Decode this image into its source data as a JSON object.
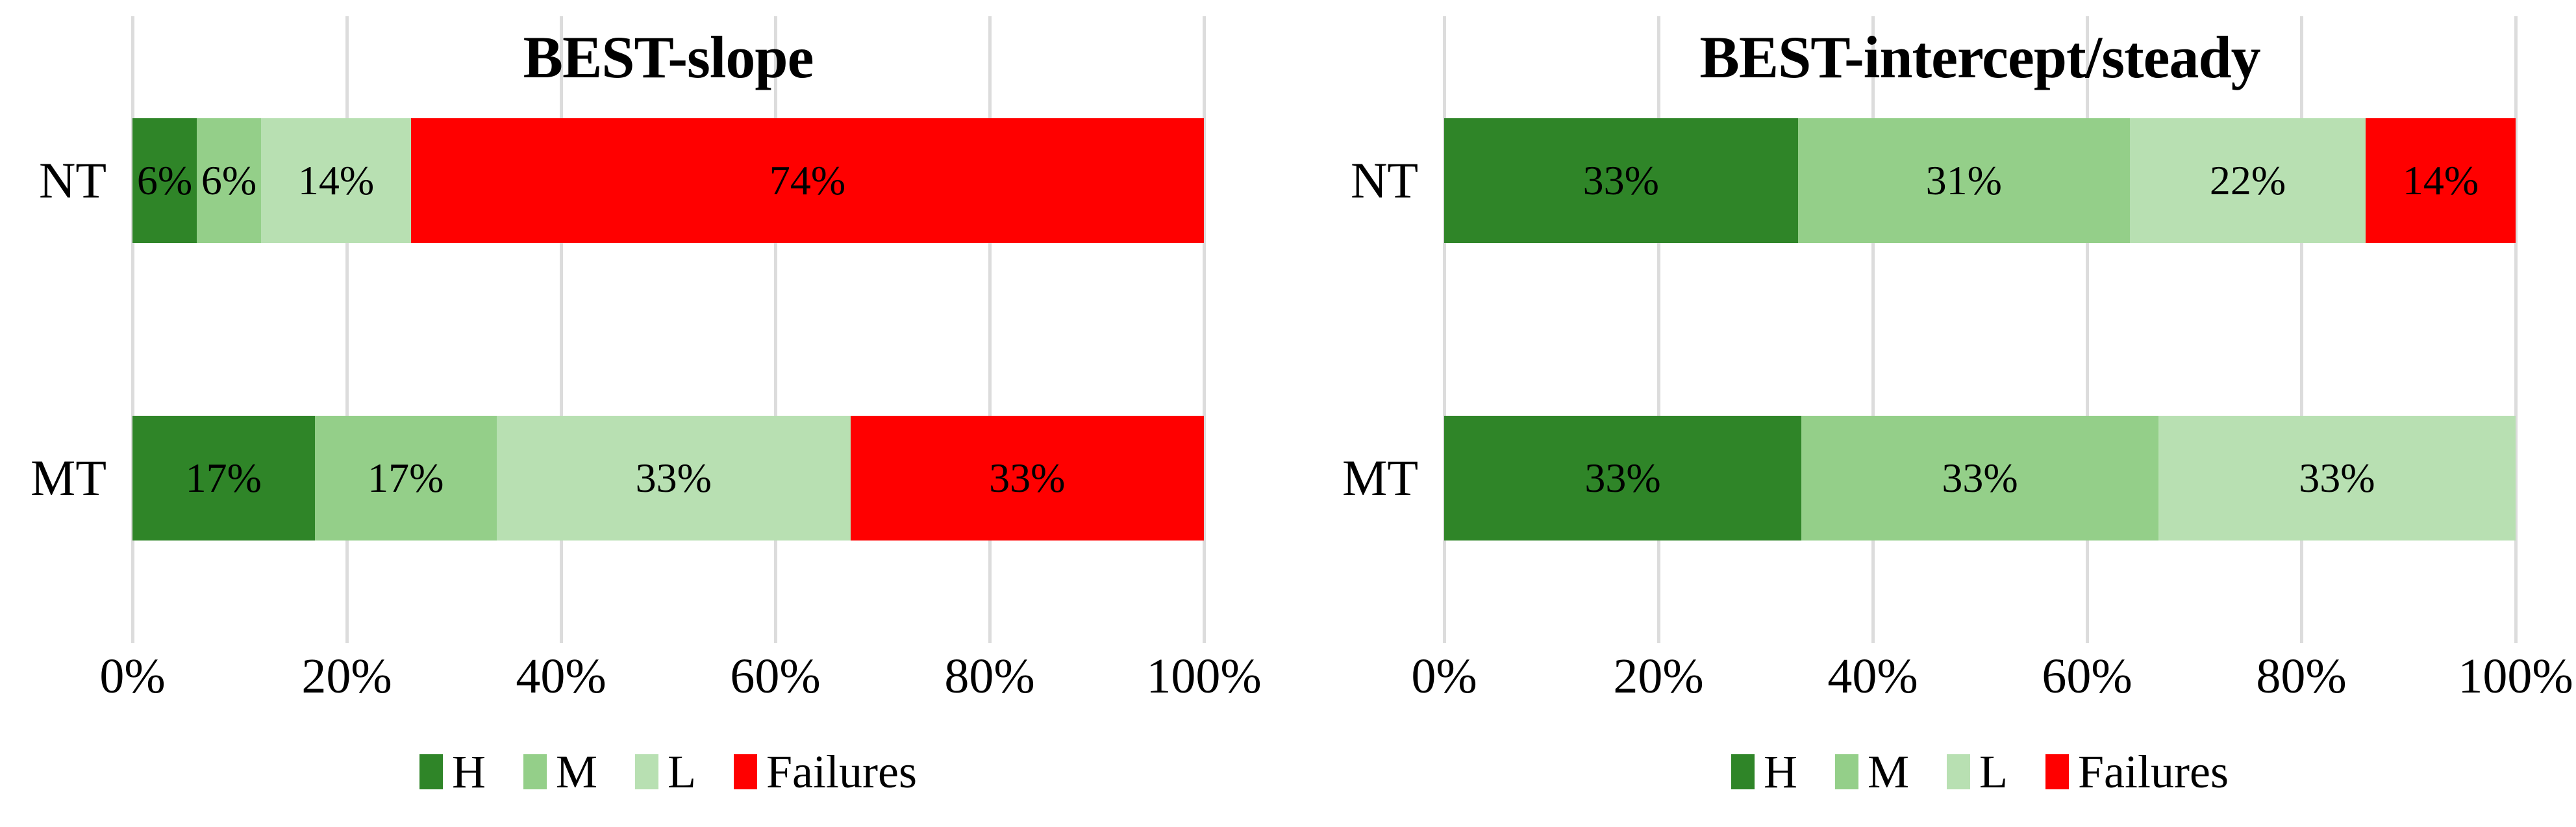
{
  "figure": {
    "background": "#FFFFFF"
  },
  "colors": {
    "H": "#2F8528",
    "M": "#94CF89",
    "L": "#B8E0B2",
    "Failures": "#FF0000",
    "gridline": "#DCDCDC",
    "label_text": "#000000"
  },
  "legend": {
    "items": [
      {
        "label": "H",
        "color": "#2F8528"
      },
      {
        "label": "M",
        "color": "#94CF89"
      },
      {
        "label": "L",
        "color": "#B8E0B2"
      },
      {
        "label": "Failures",
        "color": "#FF0000"
      }
    ]
  },
  "chart_data": [
    {
      "type": "bar",
      "orientation": "horizontal",
      "stacked": true,
      "title": "BEST-slope",
      "categories": [
        "NT",
        "MT"
      ],
      "series": [
        {
          "name": "H",
          "color": "#2F8528",
          "values": [
            6,
            17
          ],
          "labels": [
            "6%",
            "17%"
          ]
        },
        {
          "name": "M",
          "color": "#94CF89",
          "values": [
            6,
            17
          ],
          "labels": [
            "6%",
            "17%"
          ]
        },
        {
          "name": "L",
          "color": "#B8E0B2",
          "values": [
            14,
            33
          ],
          "labels": [
            "14%",
            "33%"
          ]
        },
        {
          "name": "Failures",
          "color": "#FF0000",
          "values": [
            74,
            33
          ],
          "labels": [
            "74%",
            "33%"
          ]
        }
      ],
      "xlim": [
        0,
        100
      ],
      "x_ticks": [
        "0%",
        "20%",
        "40%",
        "60%",
        "80%",
        "100%"
      ],
      "grid": true,
      "legend_position": "bottom"
    },
    {
      "type": "bar",
      "orientation": "horizontal",
      "stacked": true,
      "title": "BEST-intercept/steady",
      "categories": [
        "NT",
        "MT"
      ],
      "series": [
        {
          "name": "H",
          "color": "#2F8528",
          "values": [
            33,
            33
          ],
          "labels": [
            "33%",
            "33%"
          ]
        },
        {
          "name": "M",
          "color": "#94CF89",
          "values": [
            31,
            33
          ],
          "labels": [
            "31%",
            "33%"
          ]
        },
        {
          "name": "L",
          "color": "#B8E0B2",
          "values": [
            22,
            33
          ],
          "labels": [
            "22%",
            "33%"
          ]
        },
        {
          "name": "Failures",
          "color": "#FF0000",
          "values": [
            14,
            0
          ],
          "labels": [
            "14%",
            ""
          ]
        }
      ],
      "xlim": [
        0,
        100
      ],
      "x_ticks": [
        "0%",
        "20%",
        "40%",
        "60%",
        "80%",
        "100%"
      ],
      "grid": true,
      "legend_position": "bottom"
    }
  ]
}
